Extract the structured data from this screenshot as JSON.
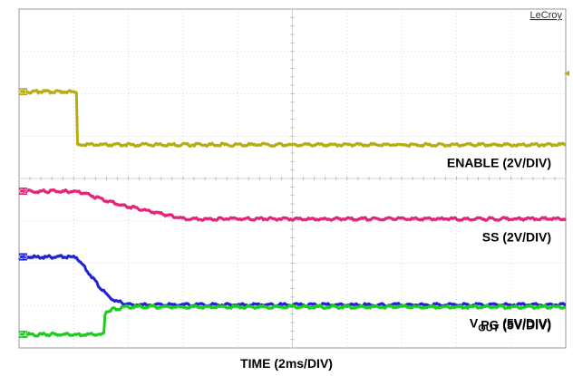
{
  "chart_data": {
    "type": "line",
    "brand": "LeCroy",
    "xlabel": "TIME (2ms/DIV)",
    "x_divisions": 10,
    "y_divisions": 8,
    "grid": true,
    "series": [
      {
        "name": "ENABLE (2V/DIV)",
        "label_main": "ENABLE (2V/DIV)",
        "marker": "C1",
        "color": "#b5ad12",
        "points": [
          [
            0,
            1.95
          ],
          [
            1.05,
            1.95
          ],
          [
            1.07,
            3.2
          ],
          [
            10,
            3.2
          ]
        ]
      },
      {
        "name": "SS (2V/DIV)",
        "label_main": "SS (2V/DIV)",
        "marker": "C2",
        "color": "#e3247a",
        "points": [
          [
            0,
            4.3
          ],
          [
            1.0,
            4.3
          ],
          [
            1.2,
            4.35
          ],
          [
            1.8,
            4.6
          ],
          [
            2.5,
            4.8
          ],
          [
            3.0,
            4.95
          ],
          [
            10,
            4.95
          ]
        ]
      },
      {
        "name": "VOUT (5V/DIV)",
        "label_main": "V",
        "label_sub": "OUT",
        "label_rest": " (5V/DIV)",
        "marker": "C3",
        "color": "#1f23d6",
        "points": [
          [
            0,
            5.85
          ],
          [
            1.05,
            5.85
          ],
          [
            1.2,
            6.1
          ],
          [
            1.5,
            6.6
          ],
          [
            1.7,
            6.85
          ],
          [
            2.0,
            6.98
          ],
          [
            10,
            6.98
          ]
        ]
      },
      {
        "name": "PG (5V/DIV)",
        "label_main": "PG (5V/DIV)",
        "marker": "C4",
        "color": "#1fcc20",
        "points": [
          [
            0,
            7.68
          ],
          [
            1.55,
            7.68
          ],
          [
            1.57,
            7.2
          ],
          [
            1.7,
            7.08
          ],
          [
            2.0,
            7.03
          ],
          [
            10,
            7.03
          ]
        ]
      }
    ]
  }
}
